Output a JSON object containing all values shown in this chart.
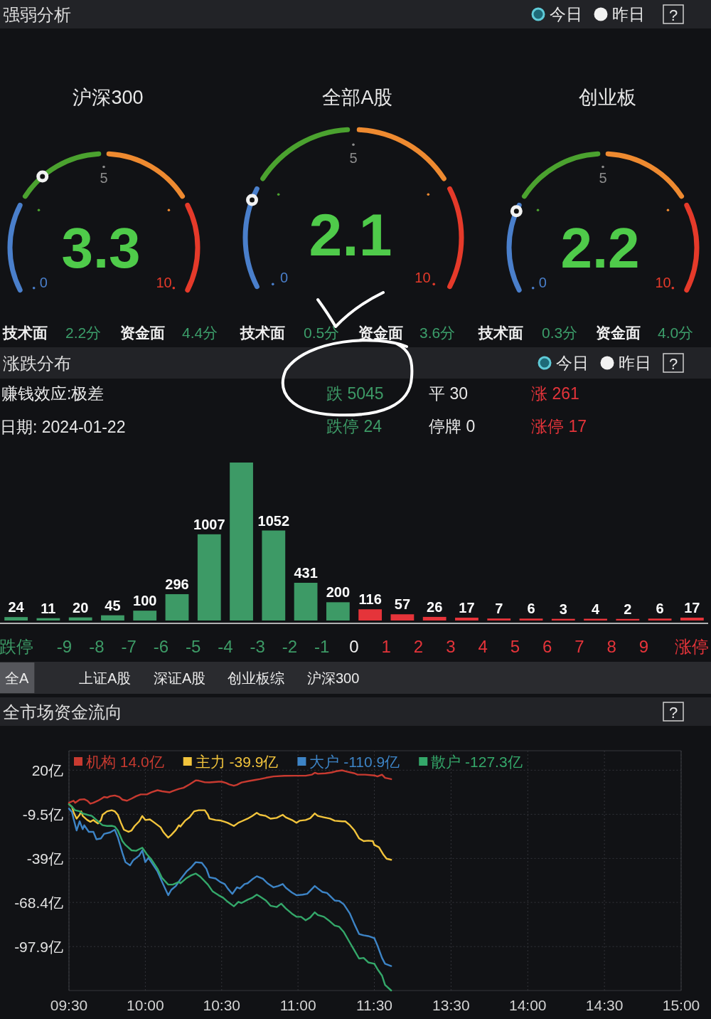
{
  "chart_data": [
    {
      "type": "other",
      "title": "强弱分析",
      "annotations": [
        "今日",
        "昨日",
        "?"
      ]
    },
    {
      "type": "other",
      "title": "沪深300",
      "values": [
        3.3
      ],
      "data_labels": true,
      "annotations": [
        "0",
        "5",
        "10",
        "技术面",
        "2.2分",
        "资金面",
        "4.4分"
      ]
    },
    {
      "type": "other",
      "title": "全部A股",
      "values": [
        2.1
      ],
      "data_labels": true,
      "annotations": [
        "0",
        "5",
        "10",
        "技术面",
        "0.5分",
        "资金面",
        "3.6分"
      ]
    },
    {
      "type": "other",
      "title": "创业板",
      "values": [
        2.2
      ],
      "data_labels": true,
      "annotations": [
        "0",
        "5",
        "10",
        "技术面",
        "0.3分",
        "资金面",
        "4.0分"
      ]
    },
    {
      "type": "bar",
      "title": "涨跌分布",
      "annotations": [
        "今日",
        "昨日",
        "?",
        "赚钱效应:极差",
        "日期: 2024-01-22",
        "跌 5045",
        "平 30",
        "涨 261",
        "跌停 24",
        "停牌 0",
        "涨停 17"
      ],
      "x": [
        -10.5,
        -9.5,
        -8.5,
        -7.5,
        -6.5,
        -5.5,
        -4.5,
        -3.5,
        -2.5,
        -1.5,
        -0.5,
        0.5,
        1.5,
        2.5,
        3.5,
        4.5,
        5.5,
        6.5,
        7.5,
        8.5,
        9.5,
        10.5
      ],
      "values": [
        24,
        11,
        20,
        45,
        100,
        296,
        1007,
        1859,
        1052,
        431,
        200,
        116,
        57,
        26,
        17,
        7,
        6,
        3,
        4,
        2,
        6,
        17
      ],
      "colors": [
        "#3d9a66",
        "#3d9a66",
        "#3d9a66",
        "#3d9a66",
        "#3d9a66",
        "#3d9a66",
        "#3d9a66",
        "#3d9a66",
        "#3d9a66",
        "#3d9a66",
        "#3d9a66",
        "#e5343a",
        "#e5343a",
        "#e5343a",
        "#e5343a",
        "#e5343a",
        "#e5343a",
        "#e5343a",
        "#e5343a",
        "#e5343a",
        "#e5343a",
        "#e5343a"
      ],
      "value_labels": [
        "24",
        "11",
        "20",
        "45",
        "100",
        "296",
        "1007",
        null,
        "1052",
        "431",
        "200",
        "116",
        "57",
        "26",
        "17",
        "7",
        "6",
        "3",
        "4",
        "2",
        "6",
        "17"
      ],
      "xlim": [
        -11,
        11
      ],
      "xticks": [
        {
          "value": -10.5,
          "label": "跌停"
        },
        -9,
        -8,
        -7,
        -6,
        -5,
        -4,
        -3,
        -2,
        -1,
        0,
        1,
        2,
        3,
        4,
        5,
        6,
        7,
        8,
        9,
        {
          "value": 10.5,
          "label": "涨停"
        }
      ]
    },
    {
      "type": "other",
      "annotations": [
        "全A",
        "上证A股",
        "深证A股",
        "创业板综",
        "沪深300"
      ]
    },
    {
      "type": "line",
      "title": "全市场资金流向",
      "annotations": [
        "?"
      ],
      "grid": true,
      "legend": "top",
      "xlim": [
        9.5,
        11.5
      ],
      "xticks": [
        {
          "value": 9.5,
          "label": "09:30"
        },
        {
          "value": 10,
          "label": "10:00"
        },
        {
          "value": 10.5,
          "label": "10:30"
        },
        {
          "value": 11,
          "label": "11:00"
        },
        {
          "value": 11.5,
          "label": "11:30"
        }
      ],
      "ylim": [
        -127.3,
        33
      ],
      "yticks": [
        {
          "value": 20,
          "label": "20亿"
        },
        {
          "value": -9.5,
          "label": "-9.5亿"
        },
        {
          "value": -39,
          "label": "-39亿"
        },
        {
          "value": -68.4,
          "label": "-68.4亿"
        },
        {
          "value": -97.9,
          "label": "-97.9亿"
        }
      ],
      "series": [
        {
          "name": "机构 14.0亿",
          "color": "#c83a30",
          "x": [
            9.5,
            9.53,
            9.54,
            9.57,
            9.6,
            9.62,
            9.64,
            9.66,
            9.67,
            9.69,
            9.71,
            9.73,
            9.75,
            9.77,
            9.8,
            9.83,
            9.85,
            9.88,
            9.91,
            9.94,
            9.97,
            10.01,
            10.04,
            10.08,
            10.11,
            10.16,
            10.18,
            10.22,
            10.25,
            10.29,
            10.33,
            10.35,
            10.39,
            10.42,
            10.48,
            10.5,
            10.53,
            10.55,
            10.58,
            10.6,
            10.63,
            10.68,
            10.72,
            10.75,
            10.79,
            10.84,
            10.91,
            10.98,
            11.05,
            11.09,
            11.11,
            11.13,
            11.18,
            11.22,
            11.25,
            11.29,
            11.32,
            11.37,
            11.39,
            11.44,
            11.5
          ],
          "values": [
            -1.8,
            -0.4,
            -1.8,
            0.3,
            0.6,
            -0.4,
            -2.4,
            -1.8,
            -1.3,
            -0.4,
            0.8,
            2.1,
            1.7,
            2.6,
            3.1,
            2.1,
            0.3,
            -0.4,
            1.0,
            2.6,
            3.8,
            3.8,
            5.2,
            6.6,
            5.9,
            5.2,
            6.1,
            7.5,
            8.2,
            10.5,
            13.2,
            13.0,
            11.9,
            11.8,
            12.3,
            12.3,
            11.4,
            10.5,
            9.6,
            10.2,
            11.8,
            12.8,
            13.5,
            14.0,
            14.9,
            15.8,
            16.2,
            16.3,
            16.3,
            17.0,
            18.3,
            17.6,
            17.9,
            18.5,
            19.3,
            19.9,
            19.0,
            17.9,
            17.0,
            17.0,
            16.5
          ]
        },
        {
          "name": "主力 -39.9亿",
          "color": "#f2c43c",
          "x": [
            9.5,
            9.52,
            9.53,
            9.55,
            9.57,
            9.58,
            9.59,
            9.62,
            9.64,
            9.66,
            9.67,
            9.69,
            9.71,
            9.72,
            9.75,
            9.78,
            9.8,
            9.82,
            9.84,
            9.86,
            9.89,
            9.91,
            9.93,
            9.96,
            9.98,
            10.0,
            10.03,
            10.06,
            10.1,
            10.12,
            10.15,
            10.17,
            10.2,
            10.22,
            10.23,
            10.26,
            10.29,
            10.32,
            10.35,
            10.39,
            10.41,
            10.42,
            10.46,
            10.49,
            10.52,
            10.54,
            10.58,
            10.61,
            10.63,
            10.67,
            10.7,
            10.73,
            10.75,
            10.79,
            10.82,
            10.86,
            10.9,
            10.92,
            10.96,
            10.99,
            11.01,
            11.05,
            11.08,
            11.11,
            11.13,
            11.17,
            11.21,
            11.24,
            11.29,
            11.31,
            11.34,
            11.37,
            11.4,
            11.43,
            11.46,
            11.49,
            11.5
          ],
          "values": [
            -2.7,
            -4.5,
            -8.0,
            -12.4,
            -9.8,
            -7.5,
            -10.6,
            -13.3,
            -14.5,
            -13.3,
            -14.2,
            -15.6,
            -13.3,
            -9.8,
            -7.5,
            -6.8,
            -7.5,
            -9.8,
            -15.1,
            -19.8,
            -21.2,
            -20.3,
            -17.3,
            -14.2,
            -10.6,
            -13.3,
            -12.9,
            -15.1,
            -18.2,
            -21.6,
            -25.1,
            -23.3,
            -20.0,
            -16.8,
            -17.7,
            -13.8,
            -11.5,
            -7.5,
            -6.8,
            -6.8,
            -9.8,
            -12.4,
            -13.3,
            -13.6,
            -14.5,
            -15.2,
            -17.3,
            -15.1,
            -14.2,
            -12.4,
            -10.6,
            -8.5,
            -9.8,
            -10.6,
            -12.4,
            -11.9,
            -9.8,
            -11.5,
            -13.3,
            -15.2,
            -13.8,
            -13.3,
            -12.1,
            -8.9,
            -10.6,
            -11.5,
            -12.4,
            -13.8,
            -14.2,
            -14.2,
            -16.8,
            -20.3,
            -25.6,
            -27.4,
            -27.1,
            -27.4,
            -30.0
          ]
        },
        {
          "name": "大户 -110.9亿",
          "color": "#3d84c6",
          "x": [
            9.5,
            9.52,
            9.53,
            9.55,
            9.57,
            9.59,
            9.6,
            9.63,
            9.66,
            9.68,
            9.71,
            9.73,
            9.77,
            9.8,
            9.82,
            9.85,
            9.87,
            9.9,
            9.92,
            9.96,
            9.98,
            10.0,
            10.02,
            10.04,
            10.08,
            10.11,
            10.15,
            10.17,
            10.2,
            10.23,
            10.27,
            10.3,
            10.33,
            10.37,
            10.4,
            10.42,
            10.46,
            10.49,
            10.52,
            10.54,
            10.57,
            10.6,
            10.62,
            10.65,
            10.67,
            10.7,
            10.73,
            10.77,
            10.8,
            10.84,
            10.87,
            10.9,
            10.92,
            10.96,
            10.99,
            11.03,
            11.06,
            11.11,
            11.13,
            11.16,
            11.19,
            11.24,
            11.27,
            11.3,
            11.34,
            11.37,
            11.4,
            11.43,
            11.46,
            11.5
          ],
          "values": [
            -5.7,
            -8.0,
            -12.4,
            -20.3,
            -14.2,
            -19.5,
            -16.8,
            -21.2,
            -21.2,
            -26.2,
            -25.6,
            -22.6,
            -21.6,
            -19.8,
            -24.8,
            -35.3,
            -41.5,
            -43.6,
            -40.3,
            -37.1,
            -33.6,
            -41.5,
            -38.5,
            -41.5,
            -47.7,
            -54.7,
            -63.6,
            -60.0,
            -57.4,
            -53.0,
            -47.7,
            -45.0,
            -41.5,
            -41.9,
            -45.9,
            -51.6,
            -52.4,
            -54.7,
            -56.1,
            -59.1,
            -62.7,
            -58.3,
            -59.1,
            -56.1,
            -55.6,
            -53.0,
            -50.9,
            -52.6,
            -55.6,
            -58.3,
            -57.4,
            -56.1,
            -58.6,
            -61.8,
            -63.6,
            -63.2,
            -62.7,
            -57.4,
            -59.1,
            -61.4,
            -62.1,
            -67.1,
            -67.4,
            -69.7,
            -75.9,
            -83.0,
            -89.5,
            -90.4,
            -90.9,
            -92.3
          ]
        },
        {
          "name": "散户 -127.3亿",
          "color": "#34a86a",
          "x": [
            9.5,
            9.52,
            9.54,
            9.57,
            9.59,
            9.62,
            9.65,
            9.67,
            9.7,
            9.72,
            9.75,
            9.78,
            9.8,
            9.82,
            9.85,
            9.87,
            9.91,
            9.94,
            9.98,
            10.01,
            10.04,
            10.08,
            10.11,
            10.15,
            10.18,
            10.22,
            10.23,
            10.27,
            10.3,
            10.33,
            10.36,
            10.41,
            10.44,
            10.48,
            10.51,
            10.54,
            10.58,
            10.61,
            10.63,
            10.67,
            10.7,
            10.73,
            10.75,
            10.79,
            10.82,
            10.86,
            10.89,
            10.92,
            10.96,
            10.99,
            11.02,
            11.05,
            11.08,
            11.11,
            11.13,
            11.17,
            11.2,
            11.24,
            11.27,
            11.3,
            11.34,
            11.37,
            11.4,
            11.43,
            11.46,
            11.5
          ],
          "values": [
            -2.7,
            -4.5,
            -6.8,
            -7.5,
            -8.9,
            -9.8,
            -10.6,
            -12.4,
            -15.1,
            -16.8,
            -17.3,
            -17.2,
            -17.7,
            -20.3,
            -27.4,
            -30.0,
            -33.6,
            -33.9,
            -31.8,
            -36.2,
            -39.7,
            -45.9,
            -52.1,
            -56.5,
            -56.5,
            -54.7,
            -55.6,
            -52.1,
            -50.3,
            -49.1,
            -51.2,
            -56.5,
            -60.9,
            -63.6,
            -65.3,
            -68.0,
            -71.0,
            -68.0,
            -68.8,
            -66.6,
            -65.3,
            -63.2,
            -64.4,
            -67.1,
            -70.6,
            -71.5,
            -69.2,
            -72.4,
            -75.9,
            -78.0,
            -78.0,
            -80.3,
            -78.5,
            -75.0,
            -76.8,
            -78.0,
            -80.3,
            -83.8,
            -84.7,
            -88.2,
            -95.3,
            -100.6,
            -105.9,
            -105.5,
            -108.5,
            -109.4
          ]
        }
      ]
    },
    {
      "type": "line",
      "grid": true,
      "tick_labels": "x",
      "xlim": [
        13,
        15
      ],
      "xticks": [
        {
          "value": 13.5,
          "label": "13:30"
        },
        {
          "value": 14,
          "label": "14:00"
        },
        {
          "value": 14.5,
          "label": "14:30"
        },
        {
          "value": 15,
          "label": "15:00"
        }
      ],
      "ylim": [
        -127.3,
        33
      ],
      "yticks": [
        20,
        -9.5,
        -39,
        -68.4,
        -97.9
      ],
      "series": [
        {
          "color": "#c83a30",
          "x": [
            13.0,
            13.02,
            13.05,
            13.07,
            13.11
          ],
          "values": [
            16.5,
            15.8,
            17.0,
            14.9,
            14.0
          ]
        },
        {
          "color": "#f2c43c",
          "x": [
            13.0,
            13.03,
            13.06,
            13.08,
            13.11
          ],
          "values": [
            -30.0,
            -31.5,
            -36.6,
            -39.2,
            -39.9
          ]
        },
        {
          "color": "#3d84c6",
          "x": [
            13.0,
            13.02,
            13.05,
            13.07,
            13.11
          ],
          "values": [
            -92.3,
            -97.1,
            -105.5,
            -109.4,
            -110.9
          ]
        },
        {
          "color": "#34a86a",
          "x": [
            13.0,
            13.02,
            13.05,
            13.07,
            13.11
          ],
          "values": [
            -109.4,
            -112.9,
            -117.3,
            -123.5,
            -127.3
          ]
        }
      ]
    }
  ]
}
